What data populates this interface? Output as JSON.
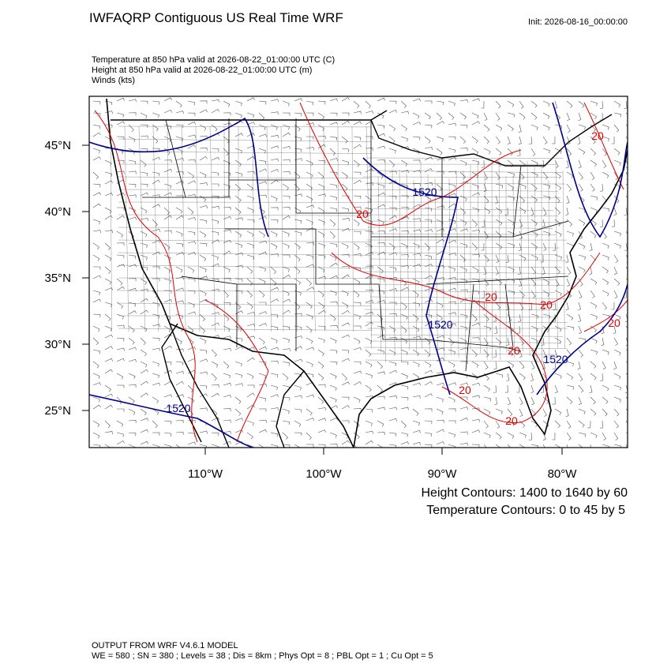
{
  "header": {
    "title": "IWFAQRP Contiguous US Real Time WRF",
    "init": "Init: 2026-08-16_00:00:00"
  },
  "fields": [
    "Temperature at 850 hPa valid at 2026-08-22_01:00:00 UTC   (C)",
    "Height at 850 hPa valid at 2026-08-22_01:00:00 UTC   (m)",
    "Winds   (kts)"
  ],
  "map": {
    "lat_labels": [
      "45°N",
      "40°N",
      "35°N",
      "30°N",
      "25°N"
    ],
    "lon_labels": [
      "110°W",
      "100°W",
      "90°W",
      "80°W"
    ],
    "height_labels": [
      "1520",
      "1520",
      "1520",
      "1520"
    ],
    "temperature_labels": [
      "20",
      "20",
      "20",
      "20",
      "20",
      "20",
      "20",
      "20"
    ]
  },
  "legend": {
    "height": "Height Contours: 1400 to 1640 by 60",
    "temperature": "Temperature Contours: 0 to 45 by 5"
  },
  "footer": [
    "OUTPUT FROM WRF V4.6.1 MODEL",
    "WE = 580 ; SN = 380 ; Levels = 38 ; Dis = 8km ; Phys Opt = 8 ; PBL Opt = 1 ; Cu Opt = 5"
  ]
}
